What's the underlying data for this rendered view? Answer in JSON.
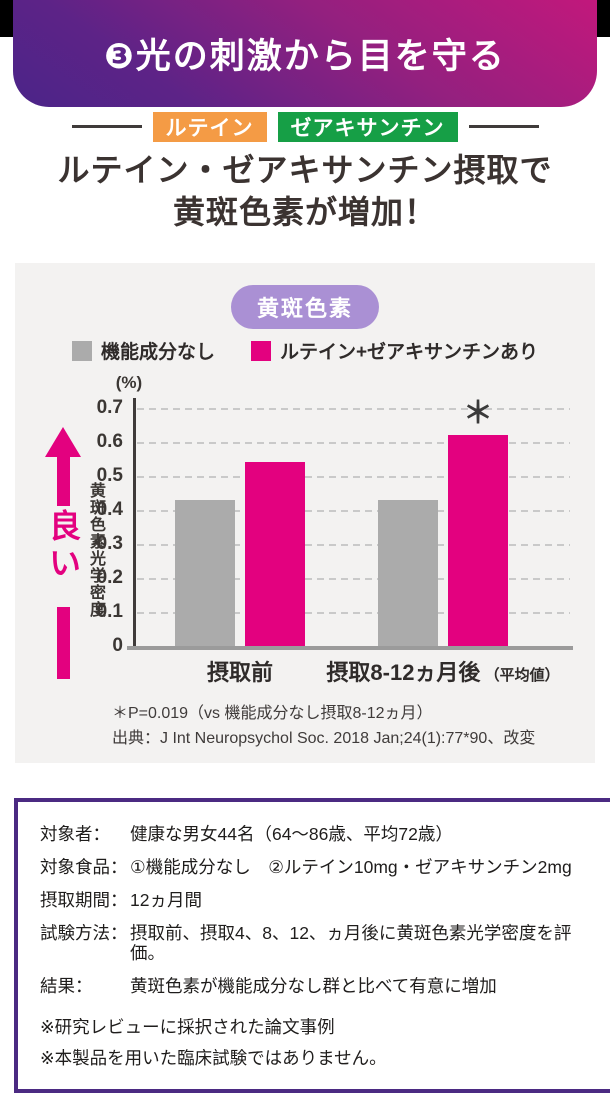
{
  "header": {
    "title": "❸光の刺激から目を守る"
  },
  "badges": {
    "lutein": "ルテイン",
    "zeaxanthin": "ゼアキサンチン"
  },
  "headline": {
    "line1": "ルテイン・ゼアキサンチン摂取で",
    "line2": "黄斑色素が増加！"
  },
  "chart_panel": {
    "badge": "黄斑色素",
    "unit_label": "(%)",
    "good_label": "良い",
    "footnote1": "＊P=0.019（vs 機能成分なし摂取8-12ヵ月）",
    "footnote2": "出典：J Int Neuropsychol Soc. 2018 Jan;24(1):77*90、改変"
  },
  "chart_data": {
    "type": "bar",
    "title": "黄斑色素",
    "categories": [
      "摂取前",
      "摂取8-12ヵ月後"
    ],
    "category_suffixes": [
      "",
      "（平均値）"
    ],
    "series": [
      {
        "name": "機能成分なし",
        "color": "#ababab",
        "values": [
          0.43,
          0.43
        ]
      },
      {
        "name": "ルテイン+ゼアキサンチンあり",
        "color": "#e3017f",
        "values": [
          0.54,
          0.62
        ]
      }
    ],
    "ylabel": "黄斑色素光学密度",
    "y_unit": "%",
    "ylim": [
      0,
      0.7
    ],
    "yticks": [
      0,
      0.1,
      0.2,
      0.3,
      0.4,
      0.5,
      0.6,
      0.7
    ],
    "grid": "dashed horizontal gridlines",
    "legend_position": "top",
    "annotations": [
      {
        "text": "＊",
        "category_index": 1,
        "series_index": 1,
        "meaning": "P=0.019 vs 機能成分なし摂取8-12ヵ月"
      }
    ]
  },
  "info_box": {
    "rows": [
      {
        "label": "対象者：",
        "value": "健康な男女44名（64〜86歳、平均72歳）"
      },
      {
        "label": "対象食品：",
        "value": "①機能成分なし　②ルテイン10mg・ゼアキサンチン2mg"
      },
      {
        "label": "摂取期間：",
        "value": "12ヵ月間"
      },
      {
        "label": "試験方法：",
        "value": "摂取前、摂取4、8、12、ヵ月後に黄斑色素光学密度を評価。"
      },
      {
        "label": "結果：",
        "value": "黄斑色素が機能成分なし群と比べて有意に増加"
      }
    ],
    "notes": [
      "※研究レビューに採択された論文事例",
      "※本製品を用いた臨床試験ではありません。"
    ]
  },
  "colors": {
    "header_gradient_start": "#c2187c",
    "header_gradient_end": "#4b2488",
    "badge_orange": "#f49b45",
    "badge_green": "#169f46",
    "panel_background": "#f3f2f1",
    "panel_badge_purple": "#aa90d4",
    "bar_gray": "#ababab",
    "bar_magenta": "#e3017f",
    "info_box_border": "#4b2a82"
  }
}
